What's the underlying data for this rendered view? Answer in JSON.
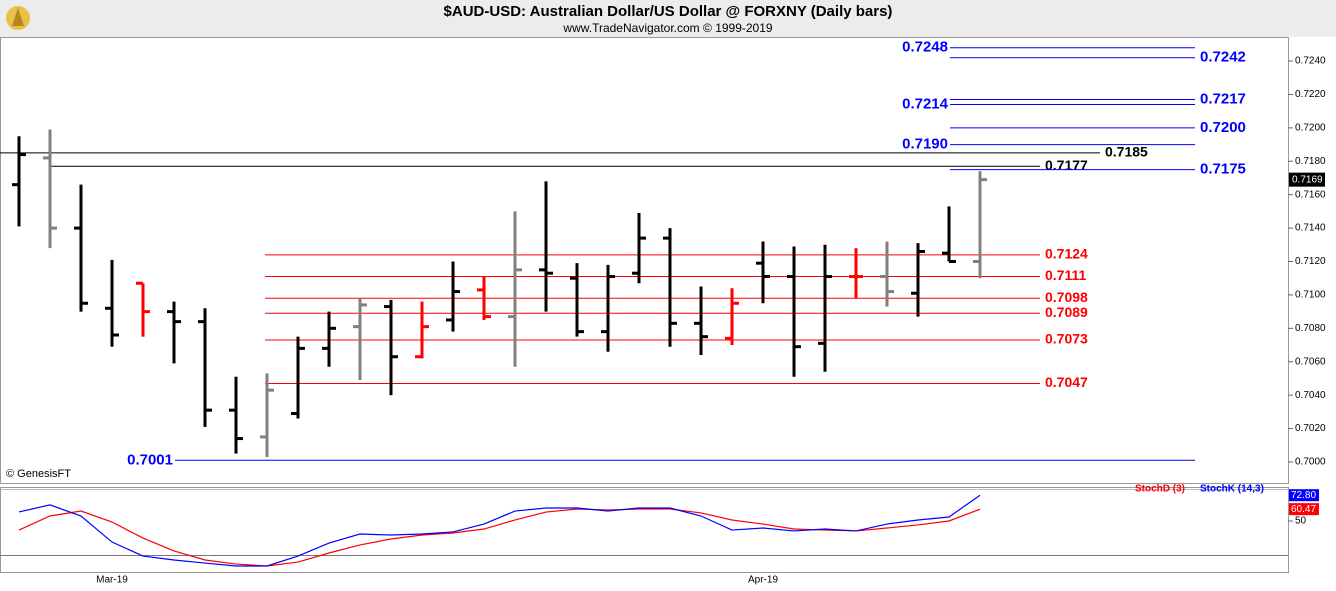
{
  "title": "$AUD-USD:  Australian Dollar/US Dollar @ FORXNY  (Daily bars)",
  "subtitle": "www.TradeNavigator.com © 1999-2019",
  "credit": "© GenesisFT",
  "chart_data": [
    {
      "type": "ohlc",
      "categories": [
        null,
        null,
        null,
        "Mar-19",
        null,
        null,
        null,
        null,
        null,
        null,
        null,
        null,
        null,
        null,
        null,
        null,
        null,
        null,
        null,
        null,
        null,
        null,
        null,
        null,
        "Apr-19",
        null,
        null,
        null,
        null,
        null,
        null,
        null
      ],
      "open": [
        0.7166,
        0.7182,
        0.714,
        0.7092,
        0.7107,
        0.709,
        0.7084,
        0.7031,
        0.7015,
        0.7029,
        0.7068,
        0.7081,
        0.7093,
        0.7063,
        0.7085,
        0.7103,
        0.7087,
        0.7115,
        0.711,
        0.7078,
        0.7113,
        0.7134,
        0.7083,
        0.7074,
        0.7119,
        0.7111,
        0.7071,
        0.7111,
        0.7111,
        0.7101,
        0.7125,
        0.712
      ],
      "high": [
        0.7195,
        0.7199,
        0.7166,
        0.7121,
        0.7107,
        0.7096,
        0.7092,
        0.7051,
        0.7053,
        0.7075,
        0.709,
        0.7098,
        0.7097,
        0.7096,
        0.712,
        0.7111,
        0.715,
        0.7168,
        0.7119,
        0.7118,
        0.7149,
        0.714,
        0.7105,
        0.7104,
        0.7132,
        0.7129,
        0.713,
        0.7128,
        0.7132,
        0.7131,
        0.7153,
        0.7174
      ],
      "low": [
        0.7141,
        0.7128,
        0.709,
        0.7069,
        0.7075,
        0.7059,
        0.7021,
        0.7005,
        0.7003,
        0.7026,
        0.7057,
        0.7049,
        0.704,
        0.7062,
        0.7078,
        0.7085,
        0.7057,
        0.709,
        0.7075,
        0.7066,
        0.7107,
        0.7069,
        0.7064,
        0.707,
        0.7095,
        0.7051,
        0.7054,
        0.7098,
        0.7093,
        0.7087,
        0.712,
        0.711
      ],
      "close": [
        0.7184,
        0.714,
        0.7095,
        0.7076,
        0.709,
        0.7084,
        0.7031,
        0.7014,
        0.7043,
        0.7068,
        0.708,
        0.7094,
        0.7063,
        0.7081,
        0.7102,
        0.7087,
        0.7115,
        0.7113,
        0.7078,
        0.7111,
        0.7134,
        0.7083,
        0.7075,
        0.7095,
        0.7111,
        0.7069,
        0.7111,
        0.7111,
        0.7102,
        0.7126,
        0.712,
        0.7169
      ],
      "colors": [
        "#000000",
        "#808080",
        "#000000",
        "#000000",
        "#ff0000",
        "#000000",
        "#000000",
        "#000000",
        "#808080",
        "#000000",
        "#000000",
        "#808080",
        "#000000",
        "#ff0000",
        "#000000",
        "#ff0000",
        "#808080",
        "#000000",
        "#000000",
        "#000000",
        "#000000",
        "#000000",
        "#000000",
        "#ff0000",
        "#000000",
        "#000000",
        "#000000",
        "#ff0000",
        "#808080",
        "#000000",
        "#000000",
        "#808080"
      ],
      "ylim": [
        0.69874,
        0.72538
      ],
      "yticks": [
        {
          "value": 0.7,
          "label": "0.7000"
        },
        {
          "value": 0.702,
          "label": "0.7020"
        },
        {
          "value": 0.704,
          "label": "0.7040"
        },
        {
          "value": 0.706,
          "label": "0.7060"
        },
        {
          "value": 0.708,
          "label": "0.7080"
        },
        {
          "value": 0.71,
          "label": "0.7100"
        },
        {
          "value": 0.712,
          "label": "0.7120"
        },
        {
          "value": 0.714,
          "label": "0.7140"
        },
        {
          "value": 0.716,
          "label": "0.7160"
        },
        {
          "value": 0.718,
          "label": "0.7180"
        },
        {
          "value": 0.72,
          "label": "0.7200"
        },
        {
          "value": 0.722,
          "label": "0.7220"
        },
        {
          "value": 0.724,
          "label": "0.7240"
        }
      ],
      "last_price": 0.7169,
      "levels": [
        {
          "value": 0.7248,
          "label": "0.7248",
          "color": "#0000ff"
        },
        {
          "value": 0.7242,
          "label": "0.7242",
          "color": "#0000ff"
        },
        {
          "value": 0.7214,
          "label": "0.7214",
          "color": "#0000ff"
        },
        {
          "value": 0.7217,
          "label": "0.7217",
          "color": "#0000ff"
        },
        {
          "value": 0.72,
          "label": "0.7200",
          "color": "#0000ff"
        },
        {
          "value": 0.719,
          "label": "0.7190",
          "color": "#0000ff"
        },
        {
          "value": 0.7185,
          "label": "0.7185",
          "color": "#000000"
        },
        {
          "value": 0.7177,
          "label": "0.7177",
          "color": "#000000"
        },
        {
          "value": 0.7175,
          "label": "0.7175",
          "color": "#0000ff"
        },
        {
          "value": 0.7124,
          "label": "0.7124",
          "color": "#ff0000"
        },
        {
          "value": 0.7111,
          "label": "0.7111",
          "color": "#ff0000"
        },
        {
          "value": 0.7098,
          "label": "0.7098",
          "color": "#ff0000"
        },
        {
          "value": 0.7089,
          "label": "0.7089",
          "color": "#ff0000"
        },
        {
          "value": 0.7073,
          "label": "0.7073",
          "color": "#ff0000"
        },
        {
          "value": 0.7047,
          "label": "0.7047",
          "color": "#ff0000"
        },
        {
          "value": 0.7001,
          "label": "0.7001",
          "color": "#0000ff"
        }
      ]
    },
    {
      "type": "line",
      "ylim": [
        4.9,
        77.4
      ],
      "yticks": [
        50
      ],
      "series": [
        {
          "name": "StochD (3)",
          "color": "#ff0000",
          "last_value_label": "60.47",
          "values": [
            42.0,
            54.4,
            58.8,
            49.1,
            34.9,
            23.5,
            15.5,
            11.9,
            10.2,
            13.7,
            21.7,
            28.8,
            34.1,
            37.6,
            39.4,
            42.9,
            50.9,
            57.9,
            60.6,
            59.7,
            60.6,
            60.6,
            57.1,
            50.9,
            47.3,
            42.9,
            42.0,
            41.2,
            43.8,
            46.5,
            50.0,
            60.47
          ]
        },
        {
          "name": "StochK (14,3)",
          "color": "#0000ff",
          "last_value_label": "72.80",
          "values": [
            58.0,
            64.2,
            54.4,
            31.4,
            19.0,
            15.5,
            12.8,
            10.2,
            10.2,
            19.0,
            30.5,
            38.5,
            37.6,
            38.5,
            40.3,
            47.3,
            58.8,
            61.5,
            61.5,
            58.8,
            61.5,
            61.5,
            54.4,
            42.0,
            43.8,
            41.2,
            42.9,
            41.2,
            47.3,
            50.9,
            53.5,
            72.8
          ]
        }
      ]
    }
  ]
}
